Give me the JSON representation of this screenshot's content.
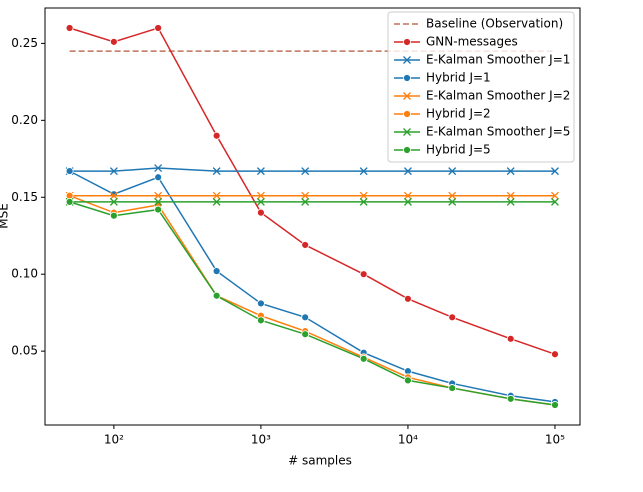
{
  "chart_data": {
    "type": "line",
    "xlabel": "# samples",
    "ylabel": "MSE",
    "xscale": "log",
    "x": [
      50,
      100,
      200,
      500,
      1000,
      2000,
      5000,
      10000,
      20000,
      50000,
      100000
    ],
    "xlim": [
      34,
      148000
    ],
    "xticks": [
      {
        "value": 100,
        "label": "10²"
      },
      {
        "value": 1000,
        "label": "10³"
      },
      {
        "value": 10000,
        "label": "10⁴"
      },
      {
        "value": 100000,
        "label": "10⁵"
      }
    ],
    "ylim": [
      0.002,
      0.273
    ],
    "yticks": [
      0.05,
      {
        "value": 0.1,
        "label": "0.10"
      },
      0.15,
      {
        "value": 0.2,
        "label": "0.20"
      },
      0.25
    ],
    "legend": "upper right",
    "series": [
      {
        "name": "Baseline (Observation)",
        "color": "#c0715c",
        "dash": true,
        "marker": "none",
        "values": [
          0.245,
          0.245,
          0.245,
          0.245,
          0.245,
          0.245,
          0.245,
          0.245,
          0.245,
          0.245,
          0.245
        ]
      },
      {
        "name": "GNN-messages",
        "color": "#d62728",
        "marker": "o",
        "values": [
          0.26,
          0.251,
          0.26,
          0.19,
          0.14,
          0.119,
          0.1,
          0.084,
          0.072,
          0.058,
          0.048
        ]
      },
      {
        "name": "E-Kalman Smoother J=1",
        "color": "#1f77b4",
        "marker": "x",
        "values": [
          0.167,
          0.167,
          0.169,
          0.167,
          0.167,
          0.167,
          0.167,
          0.167,
          0.167,
          0.167,
          0.167
        ]
      },
      {
        "name": "Hybrid J=1",
        "color": "#1f77b4",
        "marker": "o",
        "values": [
          0.167,
          0.152,
          0.163,
          0.102,
          0.081,
          0.072,
          0.049,
          0.037,
          0.029,
          0.021,
          0.017
        ]
      },
      {
        "name": "E-Kalman Smoother J=2",
        "color": "#ff7f0e",
        "marker": "x",
        "values": [
          0.151,
          0.151,
          0.151,
          0.151,
          0.151,
          0.151,
          0.151,
          0.151,
          0.151,
          0.151,
          0.151
        ]
      },
      {
        "name": "Hybrid J=2",
        "color": "#ff7f0e",
        "marker": "o",
        "values": [
          0.151,
          0.14,
          0.145,
          0.086,
          0.073,
          0.063,
          0.046,
          0.033,
          0.026,
          0.019,
          0.015
        ]
      },
      {
        "name": "E-Kalman Smoother J=5",
        "color": "#2ca02c",
        "marker": "x",
        "values": [
          0.147,
          0.147,
          0.147,
          0.147,
          0.147,
          0.147,
          0.147,
          0.147,
          0.147,
          0.147,
          0.147
        ]
      },
      {
        "name": "Hybrid J=5",
        "color": "#2ca02c",
        "marker": "o",
        "values": [
          0.147,
          0.138,
          0.142,
          0.086,
          0.07,
          0.061,
          0.045,
          0.031,
          0.026,
          0.019,
          0.015
        ]
      }
    ]
  }
}
